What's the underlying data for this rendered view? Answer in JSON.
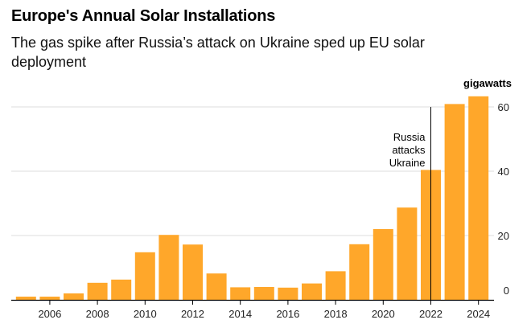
{
  "header": {
    "title": "Europe's Annual Solar Installations",
    "subtitle": "The gas spike after Russia’s attack on Ukraine sped up EU solar deployment"
  },
  "chart_data": {
    "type": "bar",
    "title": "Europe's Annual Solar Installations",
    "subtitle": "The gas spike after Russia’s attack on Ukraine sped up EU solar deployment",
    "unit_label": "gigawatts",
    "categories": [
      2005,
      2006,
      2007,
      2008,
      2009,
      2010,
      2011,
      2012,
      2013,
      2014,
      2015,
      2016,
      2017,
      2018,
      2019,
      2020,
      2021,
      2022,
      2023,
      2024
    ],
    "values": [
      1.0,
      1.0,
      2.0,
      5.3,
      6.3,
      14.8,
      20.2,
      17.2,
      8.2,
      3.9,
      4.0,
      3.8,
      5.1,
      8.9,
      17.3,
      22.0,
      28.7,
      40.4,
      60.9,
      63.3
    ],
    "x_tick_labels": [
      "2006",
      "2008",
      "2010",
      "2012",
      "2014",
      "2016",
      "2018",
      "2020",
      "2022",
      "2024"
    ],
    "y_ticks": [
      0,
      20,
      40,
      60
    ],
    "ylim": [
      0,
      68
    ],
    "grid": true,
    "y_axis_side": "right",
    "bar_color": "#ffa72a",
    "gridline_color": "#dcdcdc",
    "annotation": {
      "lines": [
        "Russia",
        "attacks",
        "Ukraine"
      ],
      "x": 2022.0
    }
  }
}
